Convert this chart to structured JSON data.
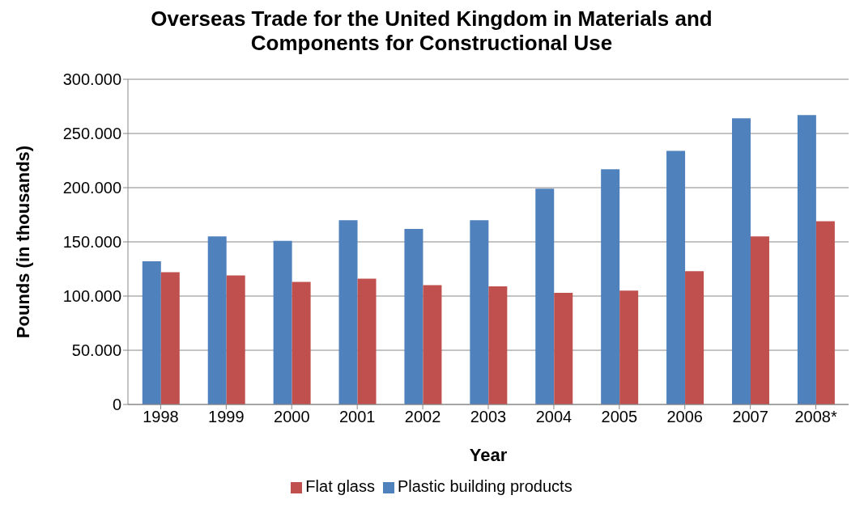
{
  "chart_data": {
    "type": "bar",
    "title": "Overseas Trade for the United Kingdom in Materials and Components for Constructional Use",
    "xlabel": "Year",
    "ylabel": "Pounds (in thousands)",
    "categories": [
      "1998",
      "1999",
      "2000",
      "2001",
      "2002",
      "2003",
      "2004",
      "2005",
      "2006",
      "2007",
      "2008*"
    ],
    "series": [
      {
        "name": "Plastic building products",
        "color": "#4f81bd",
        "values": [
          132000,
          155000,
          151000,
          170000,
          162000,
          170000,
          199000,
          217000,
          234000,
          264000,
          267000
        ]
      },
      {
        "name": "Flat glass",
        "color": "#c0504d",
        "values": [
          122000,
          119000,
          113000,
          116000,
          110000,
          109000,
          103000,
          105000,
          123000,
          155000,
          169000
        ]
      }
    ],
    "ylim": [
      0,
      300000
    ],
    "yticks": [
      {
        "value": 0,
        "label": "0"
      },
      {
        "value": 50000,
        "label": "50.000"
      },
      {
        "value": 100000,
        "label": "100.000"
      },
      {
        "value": 150000,
        "label": "150.000"
      },
      {
        "value": 200000,
        "label": "200.000"
      },
      {
        "value": 250000,
        "label": "250.000"
      },
      {
        "value": 300000,
        "label": "300.000"
      }
    ],
    "grid": "y",
    "legend": "bottom"
  }
}
